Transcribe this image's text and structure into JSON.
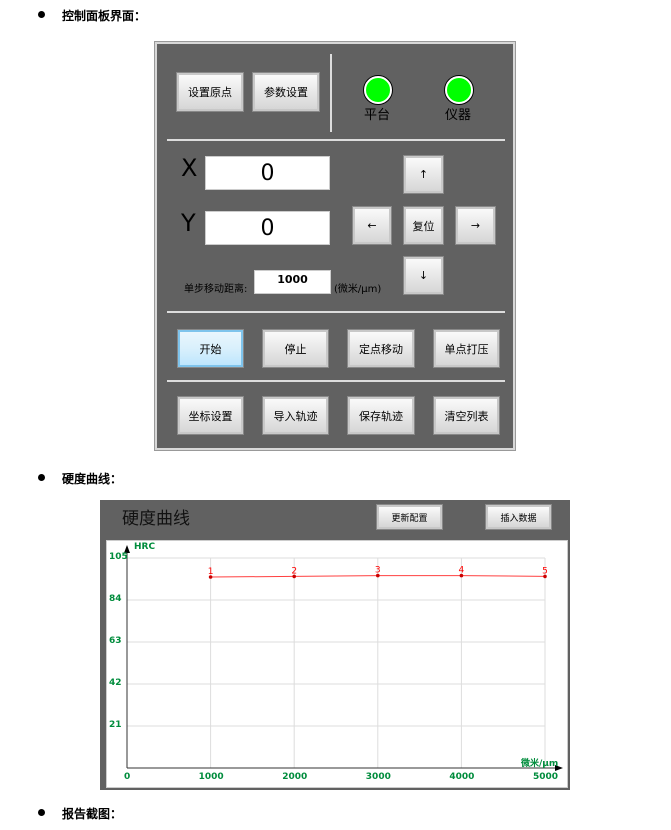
{
  "sections": [
    {
      "title": "控制面板界面："
    },
    {
      "title": "硬度曲线："
    },
    {
      "title": "报告截图："
    }
  ],
  "panel": {
    "top_buttons": [
      "设置原点",
      "参数设置"
    ],
    "indicators": [
      {
        "label": "平台",
        "color": "#00ff00"
      },
      {
        "label": "仪器",
        "color": "#00ff00"
      }
    ],
    "x_label": "X",
    "x_value": "0",
    "y_label": "Y",
    "y_value": "0",
    "arrows": {
      "up": "↑",
      "left": "←",
      "reset": "复位",
      "right": "→",
      "down": "↓"
    },
    "step_label": "单步移动距离:",
    "step_value": "1000",
    "step_unit": "(微米/μm)",
    "row1": [
      "开始",
      "停止",
      "定点移动",
      "单点打压"
    ],
    "row2": [
      "坐标设置",
      "导入轨迹",
      "保存轨迹",
      "清空列表"
    ]
  },
  "chart_window": {
    "title": "硬度曲线",
    "buttons": [
      "更新配置",
      "插入数据"
    ]
  },
  "chart_data": {
    "type": "line",
    "ylabel": "HRC",
    "xlabel": "微米/μm",
    "x": [
      1000,
      2000,
      3000,
      4000,
      5000
    ],
    "point_labels": [
      "1",
      "2",
      "3",
      "4",
      "5"
    ],
    "values": [
      95.5,
      95.8,
      96.2,
      96.2,
      95.8
    ],
    "xlim": [
      0,
      5000
    ],
    "ylim": [
      0,
      105
    ],
    "xticks": [
      "0",
      "1000",
      "2000",
      "3000",
      "4000",
      "5000"
    ],
    "yticks": [
      "21",
      "42",
      "63",
      "84",
      "105"
    ],
    "grid": true,
    "line_color": "#ff4040",
    "axis_text_color": "#008c3c"
  }
}
